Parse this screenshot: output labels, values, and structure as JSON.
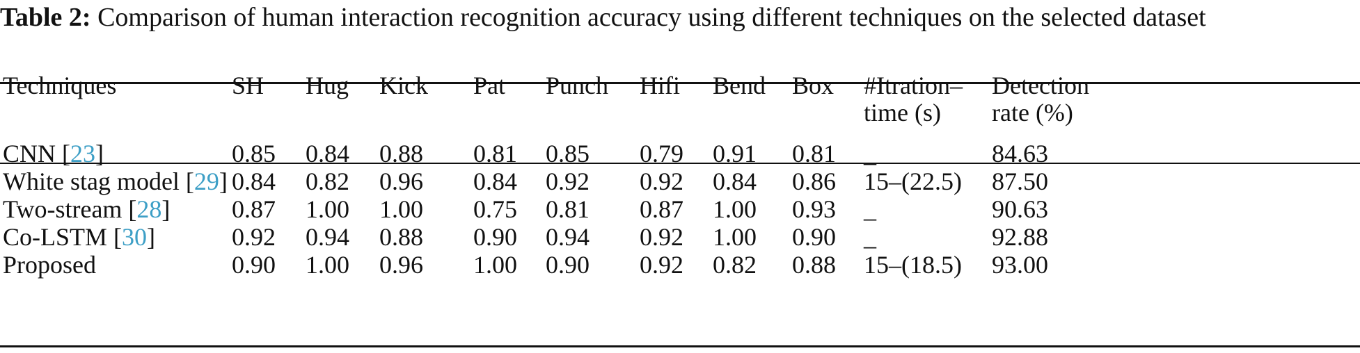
{
  "caption": {
    "label": "Table 2:",
    "text": "Comparison of human interaction recognition accuracy using different techniques on the selected dataset"
  },
  "table": {
    "headers": [
      {
        "line1": "Techniques",
        "line2": ""
      },
      {
        "line1": "SH",
        "line2": ""
      },
      {
        "line1": "Hug",
        "line2": ""
      },
      {
        "line1": "Kick",
        "line2": ""
      },
      {
        "line1": "Pat",
        "line2": ""
      },
      {
        "line1": "Punch",
        "line2": ""
      },
      {
        "line1": "Hifi",
        "line2": ""
      },
      {
        "line1": "Bend",
        "line2": ""
      },
      {
        "line1": "Box",
        "line2": ""
      },
      {
        "line1": "#Itration–",
        "line2": "time (s)"
      },
      {
        "line1": "Detection",
        "line2": "rate (%)"
      }
    ],
    "rows": [
      {
        "name": "CNN [",
        "ref": "23",
        "close": "]",
        "values": [
          "0.85",
          "0.84",
          "0.88",
          "0.81",
          "0.85",
          "0.79",
          "0.91",
          "0.81",
          "_",
          "84.63"
        ]
      },
      {
        "name": "White stag model [",
        "ref": "29",
        "close": "]",
        "values": [
          "0.84",
          "0.82",
          "0.96",
          "0.84",
          "0.92",
          "0.92",
          "0.84",
          "0.86",
          "15–(22.5)",
          "87.50"
        ]
      },
      {
        "name": "Two-stream [",
        "ref": "28",
        "close": "]",
        "values": [
          "0.87",
          "1.00",
          "1.00",
          "0.75",
          "0.81",
          "0.87",
          "1.00",
          "0.93",
          "_",
          "90.63"
        ]
      },
      {
        "name": "Co-LSTM [",
        "ref": "30",
        "close": "]",
        "values": [
          "0.92",
          "0.94",
          "0.88",
          "0.90",
          "0.94",
          "0.92",
          "1.00",
          "0.90",
          "_",
          "92.88"
        ]
      },
      {
        "name": "Proposed",
        "ref": "",
        "close": "",
        "values": [
          "0.90",
          "1.00",
          "0.96",
          "1.00",
          "0.90",
          "0.92",
          "0.82",
          "0.88",
          "15–(18.5)",
          "93.00"
        ]
      }
    ]
  }
}
